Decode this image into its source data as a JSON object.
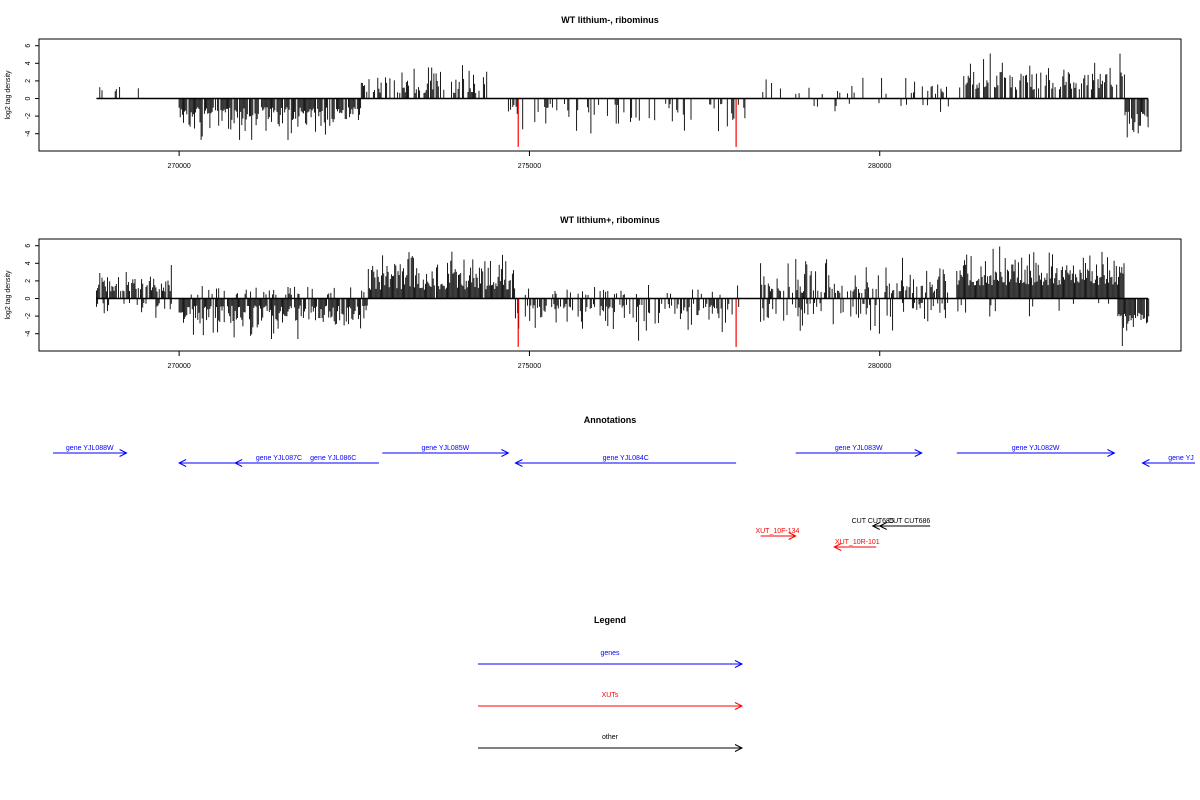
{
  "chart_data": [
    {
      "type": "bar",
      "title": "WT lithium-, ribominus",
      "ylabel": "log2 tag density",
      "xlim": [
        268000,
        283800
      ],
      "ylim": [
        -5.5,
        6.5
      ],
      "x_ticks": [
        270000,
        275000,
        280000
      ],
      "y_ticks": [
        6,
        4,
        2,
        0,
        -2,
        -4
      ],
      "highlight_color": "#ff0000",
      "bar_color": "#000000",
      "highlights": [
        {
          "x": 274840,
          "y": -5.5
        },
        {
          "x": 277950,
          "y": -5.5
        }
      ],
      "blocks": [
        {
          "x0": 268820,
          "x1": 269450,
          "density": 0.12,
          "sign": 1,
          "ymin": 0.8,
          "ymax": 1.6,
          "seed": 11
        },
        {
          "x0": 270000,
          "x1": 272600,
          "density": 0.85,
          "sign": -1,
          "ymin": 1.0,
          "ymax": 4.7,
          "seed": 12
        },
        {
          "x0": 272600,
          "x1": 274400,
          "density": 0.55,
          "sign": 1,
          "ymin": 0.6,
          "ymax": 4.2,
          "seed": 13
        },
        {
          "x0": 274700,
          "x1": 278100,
          "density": 0.3,
          "sign": -1,
          "ymin": 0.6,
          "ymax": 4.5,
          "seed": 14
        },
        {
          "x0": 278300,
          "x1": 281200,
          "density": 0.16,
          "sign": 1,
          "ymin": 0.5,
          "ymax": 3.2,
          "seed": 15
        },
        {
          "x0": 279000,
          "x1": 281000,
          "density": 0.08,
          "sign": -1,
          "ymin": 0.5,
          "ymax": 3.0,
          "seed": 16
        },
        {
          "x0": 281200,
          "x1": 283500,
          "density": 0.7,
          "sign": 1,
          "ymin": 1.0,
          "ymax": 5.1,
          "seed": 17
        },
        {
          "x0": 283500,
          "x1": 283850,
          "density": 0.8,
          "sign": -1,
          "ymin": 1.5,
          "ymax": 4.6,
          "seed": 18
        }
      ]
    },
    {
      "type": "bar",
      "title": "WT lithium+, ribominus",
      "ylabel": "log2 tag density",
      "xlim": [
        268000,
        283800
      ],
      "ylim": [
        -5.5,
        6.5
      ],
      "x_ticks": [
        270000,
        275000,
        280000
      ],
      "y_ticks": [
        6,
        4,
        2,
        0,
        -2,
        -4
      ],
      "highlight_color": "#ff0000",
      "bar_color": "#000000",
      "highlights": [
        {
          "x": 274840,
          "y": -5.5
        },
        {
          "x": 277950,
          "y": -5.5
        }
      ],
      "blocks": [
        {
          "x0": 268820,
          "x1": 269900,
          "density": 0.75,
          "sign": 1,
          "ymin": 0.8,
          "ymax": 3.8,
          "seed": 21
        },
        {
          "x0": 268820,
          "x1": 269900,
          "density": 0.25,
          "sign": -1,
          "ymin": 0.5,
          "ymax": 2.4,
          "seed": 22
        },
        {
          "x0": 270000,
          "x1": 272700,
          "density": 0.8,
          "sign": -1,
          "ymin": 0.8,
          "ymax": 4.6,
          "seed": 23
        },
        {
          "x0": 270000,
          "x1": 272700,
          "density": 0.2,
          "sign": 1,
          "ymin": 0.4,
          "ymax": 1.6,
          "seed": 24
        },
        {
          "x0": 272700,
          "x1": 274800,
          "density": 0.95,
          "sign": 1,
          "ymin": 1.0,
          "ymax": 5.6,
          "seed": 25
        },
        {
          "x0": 274800,
          "x1": 278000,
          "density": 0.55,
          "sign": -1,
          "ymin": 0.6,
          "ymax": 4.8,
          "seed": 26
        },
        {
          "x0": 274800,
          "x1": 278000,
          "density": 0.15,
          "sign": 1,
          "ymin": 0.4,
          "ymax": 1.6,
          "seed": 27
        },
        {
          "x0": 278300,
          "x1": 281000,
          "density": 0.55,
          "sign": 1,
          "ymin": 0.6,
          "ymax": 4.8,
          "seed": 28
        },
        {
          "x0": 278300,
          "x1": 281000,
          "density": 0.4,
          "sign": -1,
          "ymin": 0.5,
          "ymax": 4.0,
          "seed": 29
        },
        {
          "x0": 281100,
          "x1": 283500,
          "density": 1.0,
          "sign": 1,
          "ymin": 1.5,
          "ymax": 6.0,
          "seed": 30
        },
        {
          "x0": 281100,
          "x1": 283500,
          "density": 0.12,
          "sign": -1,
          "ymin": 0.5,
          "ymax": 3.0,
          "seed": 31
        },
        {
          "x0": 283400,
          "x1": 283850,
          "density": 0.9,
          "sign": -1,
          "ymin": 1.5,
          "ymax": 5.4,
          "seed": 32
        }
      ]
    }
  ],
  "annotations": {
    "title": "Annotations",
    "colors": {
      "gene": "#0000ff",
      "xut": "#ff0000",
      "other": "#000000"
    },
    "features": [
      {
        "label": "gene YJL088W",
        "kind": "gene",
        "dir": "right",
        "x0": 268200,
        "x1": 269250,
        "row": 0
      },
      {
        "label": "gene YJL087C",
        "kind": "gene",
        "dir": "left",
        "x0": 270000,
        "x1": 272850,
        "row": 1
      },
      {
        "label": "gene YJL086C",
        "kind": "gene",
        "dir": "left",
        "x0": 270800,
        "x1": 272850,
        "row": 1,
        "label_x": 272200
      },
      {
        "label": "gene YJL085W",
        "kind": "gene",
        "dir": "right",
        "x0": 272900,
        "x1": 274700,
        "row": 0
      },
      {
        "label": "gene YJL084C",
        "kind": "gene",
        "dir": "left",
        "x0": 274800,
        "x1": 277950,
        "row": 1
      },
      {
        "label": "gene YJL083W",
        "kind": "gene",
        "dir": "right",
        "x0": 278800,
        "x1": 280600,
        "row": 0
      },
      {
        "label": "gene YJL082W",
        "kind": "gene",
        "dir": "right",
        "x0": 281100,
        "x1": 283350,
        "row": 0
      },
      {
        "label": "gene YJ",
        "kind": "gene",
        "dir": "left",
        "x0": 283750,
        "x1": 284500,
        "row": 1,
        "label_x": 284300
      },
      {
        "label": "CUT CUT685",
        "kind": "other",
        "dir": "left",
        "x0": 279900,
        "x1": 280250,
        "row": 2,
        "label_x": 279900
      },
      {
        "label": "CUT CUT686",
        "kind": "other",
        "dir": "left",
        "x0": 280000,
        "x1": 280720,
        "row": 2,
        "label_x": 280420
      },
      {
        "label": "XUT_10F-134",
        "kind": "xut",
        "dir": "right",
        "x0": 278300,
        "x1": 278800,
        "row": 3,
        "label_x": 278540
      },
      {
        "label": "XUT_10R-101",
        "kind": "xut",
        "dir": "left",
        "x0": 279350,
        "x1": 279950,
        "row": 4,
        "label_x": 279680
      }
    ]
  },
  "legend": {
    "title": "Legend",
    "items": [
      {
        "label": "genes",
        "kind": "gene"
      },
      {
        "label": "XUTs",
        "kind": "xut"
      },
      {
        "label": "other",
        "kind": "other"
      }
    ]
  }
}
